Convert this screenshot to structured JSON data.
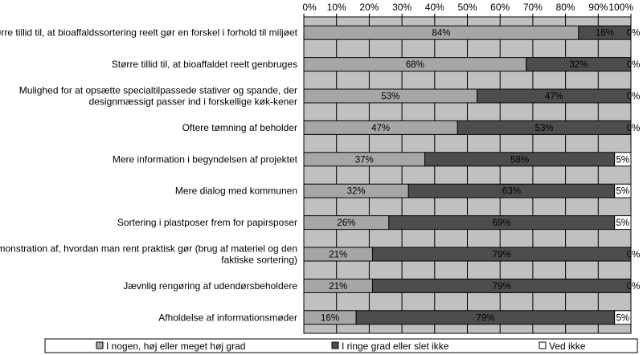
{
  "chart_data": {
    "type": "bar",
    "orientation": "horizontal",
    "stacked": true,
    "percent_stacked": true,
    "categories": [
      [
        "Større tillid til, at bioaffaldssortering reelt gør en forskel i forhold til miljøet"
      ],
      [
        "Større tillid til, at bioaffaldet reelt genbruges"
      ],
      [
        "Mulighed for at opsætte specialtilpassede stativer og spande, der",
        "designmæssigt passer ind i forskellige køk-kener"
      ],
      [
        "Oftere tømning af beholder"
      ],
      [
        "Mere information i begyndelsen af projektet"
      ],
      [
        "Mere dialog med kommunen"
      ],
      [
        "Sortering i plastposer frem for papirsposer"
      ],
      [
        "Demonstration af, hvordan man rent praktisk gør (brug af materiel og den",
        "faktiske sortering)"
      ],
      [
        "Jævnlig rengøring af udendørsbeholdere"
      ],
      [
        "Afholdelse af informationsmøder"
      ]
    ],
    "series": [
      {
        "name": "I nogen, høj eller meget høj grad",
        "color": "#a6a6a6",
        "values": [
          84,
          68,
          53,
          47,
          37,
          32,
          26,
          21,
          21,
          16
        ],
        "labels": [
          "84%",
          "68%",
          "53%",
          "47%",
          "37%",
          "32%",
          "26%",
          "21%",
          "21%",
          "16%"
        ]
      },
      {
        "name": "I ringe grad eller slet ikke",
        "color": "#4d4d4d",
        "values": [
          16,
          32,
          47,
          53,
          58,
          63,
          69,
          79,
          79,
          79
        ],
        "labels": [
          "16%",
          "32%",
          "47%",
          "53%",
          "58%",
          "63%",
          "69%",
          "79%",
          "79%",
          "79%"
        ]
      },
      {
        "name": "Ved ikke",
        "color": "#ffffff",
        "values": [
          0,
          0,
          0,
          0,
          5,
          5,
          5,
          0,
          0,
          5
        ],
        "labels": [
          "0%",
          "0%",
          "0%",
          "0%",
          "5%",
          "5%",
          "5%",
          "0%",
          "0%",
          "5%"
        ]
      }
    ],
    "xlim": [
      0,
      100
    ],
    "xticks": [
      "0%",
      "10%",
      "20%",
      "30%",
      "40%",
      "50%",
      "60%",
      "70%",
      "80%",
      "90%",
      "100%"
    ],
    "xaxis_position": "top",
    "plot_background": "#c0c0c0",
    "grid": true,
    "legend_position": "bottom"
  }
}
